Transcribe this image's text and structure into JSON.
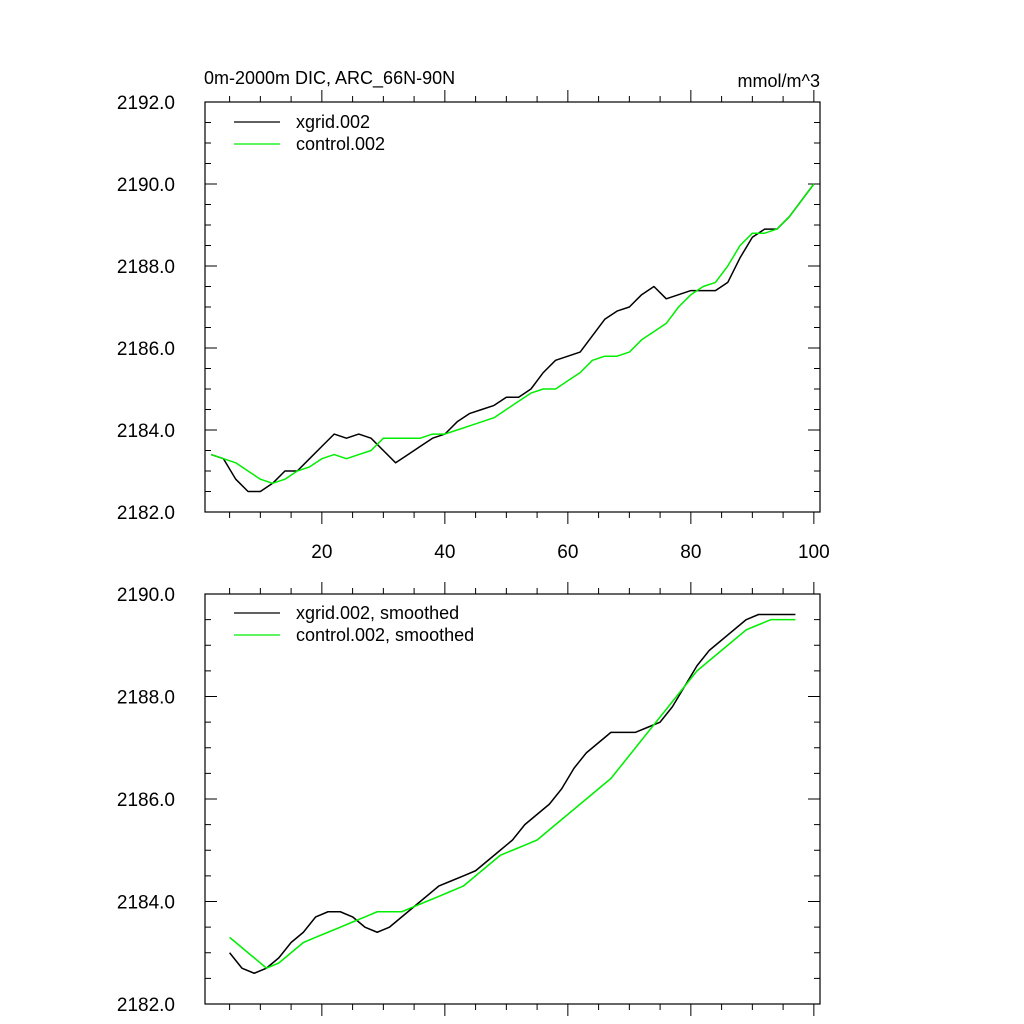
{
  "header": {
    "title_left": "0m-2000m DIC, ARC_66N-90N",
    "title_right": "mmol/m^3"
  },
  "chart_data": [
    {
      "type": "line",
      "id": "raw",
      "title": "0m-2000m DIC, ARC_66N-90N",
      "units": "mmol/m^3",
      "xlim": [
        1,
        101
      ],
      "ylim": [
        2182,
        2192
      ],
      "xticks": [
        20,
        40,
        60,
        80,
        100
      ],
      "xtick_labels": [
        "20",
        "40",
        "60",
        "80",
        "100"
      ],
      "yticks": [
        2182,
        2184,
        2186,
        2188,
        2190,
        2192
      ],
      "ytick_labels": [
        "2182.0",
        "2184.0",
        "2186.0",
        "2188.0",
        "2190.0",
        "2192.0"
      ],
      "legend": [
        "xgrid.002",
        "control.002"
      ],
      "series": [
        {
          "name": "xgrid.002",
          "color": "#000000",
          "x": [
            2,
            4,
            6,
            8,
            10,
            12,
            14,
            16,
            18,
            20,
            22,
            24,
            26,
            28,
            30,
            32,
            34,
            36,
            38,
            40,
            42,
            44,
            46,
            48,
            50,
            52,
            54,
            56,
            58,
            60,
            62,
            64,
            66,
            68,
            70,
            72,
            74,
            76,
            78,
            80,
            82,
            84,
            86,
            88,
            90,
            92,
            94,
            96,
            98,
            100
          ],
          "values": [
            2183.4,
            2183.3,
            2182.8,
            2182.5,
            2182.5,
            2182.7,
            2183.0,
            2183.0,
            2183.3,
            2183.6,
            2183.9,
            2183.8,
            2183.9,
            2183.8,
            2183.5,
            2183.2,
            2183.4,
            2183.6,
            2183.8,
            2183.9,
            2184.2,
            2184.4,
            2184.5,
            2184.6,
            2184.8,
            2184.8,
            2185.0,
            2185.4,
            2185.7,
            2185.8,
            2185.9,
            2186.3,
            2186.7,
            2186.9,
            2187.0,
            2187.3,
            2187.5,
            2187.2,
            2187.3,
            2187.4,
            2187.4,
            2187.4,
            2187.6,
            2188.2,
            2188.7,
            2188.9,
            2188.9,
            2189.2,
            2189.6,
            2190.0
          ]
        },
        {
          "name": "control.002",
          "color": "#00ee00",
          "x": [
            2,
            4,
            6,
            8,
            10,
            12,
            14,
            16,
            18,
            20,
            22,
            24,
            26,
            28,
            30,
            32,
            34,
            36,
            38,
            40,
            42,
            44,
            46,
            48,
            50,
            52,
            54,
            56,
            58,
            60,
            62,
            64,
            66,
            68,
            70,
            72,
            74,
            76,
            78,
            80,
            82,
            84,
            86,
            88,
            90,
            92,
            94,
            96,
            98,
            100
          ],
          "values": [
            2183.4,
            2183.3,
            2183.2,
            2183.0,
            2182.8,
            2182.7,
            2182.8,
            2183.0,
            2183.1,
            2183.3,
            2183.4,
            2183.3,
            2183.4,
            2183.5,
            2183.8,
            2183.8,
            2183.8,
            2183.8,
            2183.9,
            2183.9,
            2184.0,
            2184.1,
            2184.2,
            2184.3,
            2184.5,
            2184.7,
            2184.9,
            2185.0,
            2185.0,
            2185.2,
            2185.4,
            2185.7,
            2185.8,
            2185.8,
            2185.9,
            2186.2,
            2186.4,
            2186.6,
            2187.0,
            2187.3,
            2187.5,
            2187.6,
            2188.0,
            2188.5,
            2188.8,
            2188.8,
            2188.9,
            2189.2,
            2189.6,
            2190.0
          ]
        }
      ]
    },
    {
      "type": "line",
      "id": "smoothed",
      "xlim": [
        1,
        101
      ],
      "ylim": [
        2182,
        2190
      ],
      "xticks": [
        20,
        40,
        60,
        80,
        100
      ],
      "yticks": [
        2182,
        2184,
        2186,
        2188,
        2190
      ],
      "ytick_labels": [
        "2182.0",
        "2184.0",
        "2186.0",
        "2188.0",
        "2190.0"
      ],
      "legend": [
        "xgrid.002, smoothed",
        "control.002, smoothed"
      ],
      "series": [
        {
          "name": "xgrid.002, smoothed",
          "color": "#000000",
          "x": [
            5,
            7,
            9,
            11,
            13,
            15,
            17,
            19,
            21,
            23,
            25,
            27,
            29,
            31,
            33,
            35,
            37,
            39,
            41,
            43,
            45,
            47,
            49,
            51,
            53,
            55,
            57,
            59,
            61,
            63,
            65,
            67,
            69,
            71,
            73,
            75,
            77,
            79,
            81,
            83,
            85,
            87,
            89,
            91,
            93,
            95,
            97
          ],
          "values": [
            2183.0,
            2182.7,
            2182.6,
            2182.7,
            2182.9,
            2183.2,
            2183.4,
            2183.7,
            2183.8,
            2183.8,
            2183.7,
            2183.5,
            2183.4,
            2183.5,
            2183.7,
            2183.9,
            2184.1,
            2184.3,
            2184.4,
            2184.5,
            2184.6,
            2184.8,
            2185.0,
            2185.2,
            2185.5,
            2185.7,
            2185.9,
            2186.2,
            2186.6,
            2186.9,
            2187.1,
            2187.3,
            2187.3,
            2187.3,
            2187.4,
            2187.5,
            2187.8,
            2188.2,
            2188.6,
            2188.9,
            2189.1,
            2189.3,
            2189.5,
            2189.6,
            2189.6,
            2189.6,
            2189.6
          ]
        },
        {
          "name": "control.002, smoothed",
          "color": "#00ee00",
          "x": [
            5,
            7,
            9,
            11,
            13,
            15,
            17,
            19,
            21,
            23,
            25,
            27,
            29,
            31,
            33,
            35,
            37,
            39,
            41,
            43,
            45,
            47,
            49,
            51,
            53,
            55,
            57,
            59,
            61,
            63,
            65,
            67,
            69,
            71,
            73,
            75,
            77,
            79,
            81,
            83,
            85,
            87,
            89,
            91,
            93,
            95,
            97
          ],
          "values": [
            2183.3,
            2183.1,
            2182.9,
            2182.7,
            2182.8,
            2183.0,
            2183.2,
            2183.3,
            2183.4,
            2183.5,
            2183.6,
            2183.7,
            2183.8,
            2183.8,
            2183.8,
            2183.9,
            2184.0,
            2184.1,
            2184.2,
            2184.3,
            2184.5,
            2184.7,
            2184.9,
            2185.0,
            2185.1,
            2185.2,
            2185.4,
            2185.6,
            2185.8,
            2186.0,
            2186.2,
            2186.4,
            2186.7,
            2187.0,
            2187.3,
            2187.6,
            2187.9,
            2188.2,
            2188.5,
            2188.7,
            2188.9,
            2189.1,
            2189.3,
            2189.4,
            2189.5,
            2189.5,
            2189.5
          ]
        }
      ]
    }
  ]
}
